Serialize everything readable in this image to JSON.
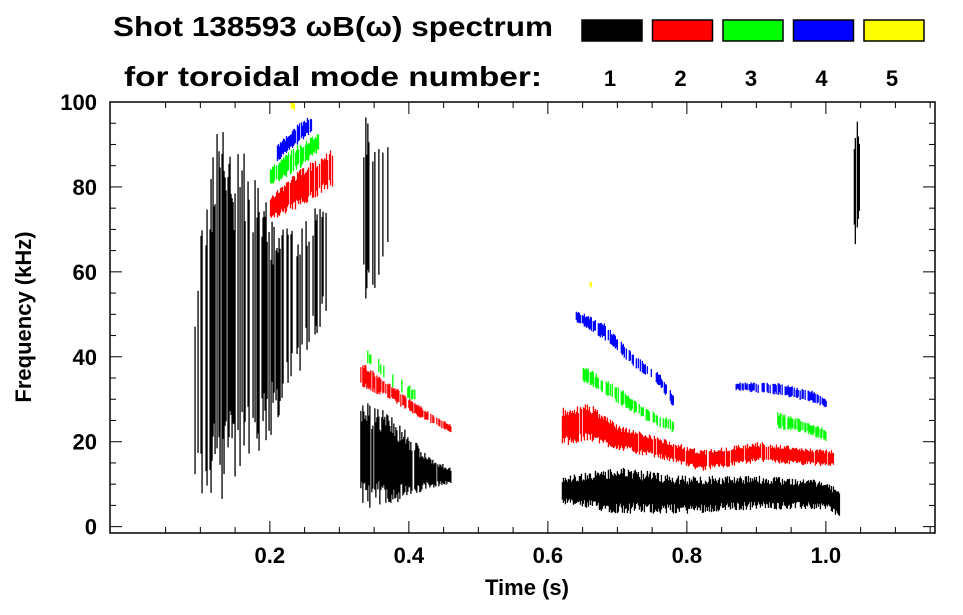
{
  "chart_data": {
    "type": "heatmap",
    "title": "Shot 138593 ωB(ω) spectrum",
    "subtitle": "for toroidal mode number:",
    "xlabel": "Time (s)",
    "ylabel": "Frequency (kHz)",
    "xlim": [
      -0.03,
      1.157
    ],
    "ylim": [
      -1.5,
      100
    ],
    "xticks": [
      0.2,
      0.4,
      0.6,
      0.8,
      1.0
    ],
    "xtick_labels": [
      "0.2",
      "0.4",
      "0.6",
      "0.8",
      "1.0"
    ],
    "yticks": [
      0,
      20,
      40,
      60,
      80,
      100
    ],
    "ytick_labels": [
      "0",
      "20",
      "40",
      "60",
      "80",
      "100"
    ],
    "grid": false,
    "legend": {
      "placement": "top-right",
      "entries": [
        {
          "label": "1",
          "color": "#000000"
        },
        {
          "label": "2",
          "color": "#ff0000"
        },
        {
          "label": "3",
          "color": "#00ff00"
        },
        {
          "label": "4",
          "color": "#0000ff"
        },
        {
          "label": "5",
          "color": "#ffff00"
        }
      ]
    },
    "series": [
      {
        "name": "n=1",
        "color": "#000000",
        "features": [
          {
            "points": [
              [
                0.09,
                3,
                60
              ],
              [
                0.12,
                5,
                95
              ],
              [
                0.15,
                8,
                90
              ],
              [
                0.18,
                15,
                85
              ],
              [
                0.2,
                20,
                75
              ],
              [
                0.24,
                35,
                72
              ],
              [
                0.28,
                50,
                78
              ]
            ],
            "density": 0.6
          },
          {
            "points": [
              [
                0.33,
                4,
                30
              ],
              [
                0.36,
                5,
                28
              ],
              [
                0.4,
                6,
                22
              ],
              [
                0.43,
                9,
                16
              ],
              [
                0.46,
                10,
                14
              ]
            ],
            "density": 0.95
          },
          {
            "points": [
              [
                0.33,
                50,
                100
              ],
              [
                0.35,
                55,
                95
              ],
              [
                0.37,
                60,
                90
              ]
            ],
            "density": 0.4
          },
          {
            "points": [
              [
                0.62,
                5,
                12
              ],
              [
                0.7,
                3,
                14
              ],
              [
                0.8,
                3,
                12
              ],
              [
                0.9,
                4,
                12
              ],
              [
                1.0,
                4,
                11
              ],
              [
                1.02,
                2,
                8
              ]
            ],
            "density": 1.0
          },
          {
            "points": [
              [
                1.04,
                65,
                95
              ],
              [
                1.05,
                70,
                97
              ]
            ],
            "density": 0.8
          }
        ]
      },
      {
        "name": "n=2",
        "color": "#ff0000",
        "features": [
          {
            "points": [
              [
                0.2,
                72,
                78
              ],
              [
                0.24,
                75,
                84
              ],
              [
                0.29,
                80,
                89
              ]
            ],
            "density": 0.9
          },
          {
            "points": [
              [
                0.33,
                33,
                39
              ],
              [
                0.37,
                30,
                34
              ],
              [
                0.41,
                26,
                29
              ],
              [
                0.46,
                22,
                24
              ]
            ],
            "density": 0.8
          },
          {
            "points": [
              [
                0.62,
                19,
                28
              ],
              [
                0.66,
                20,
                29
              ],
              [
                0.7,
                18,
                24
              ],
              [
                0.76,
                16,
                21
              ],
              [
                0.82,
                13,
                18
              ],
              [
                0.9,
                15,
                20
              ],
              [
                1.01,
                14,
                18
              ]
            ],
            "density": 0.95
          }
        ]
      },
      {
        "name": "n=3",
        "color": "#00ff00",
        "features": [
          {
            "points": [
              [
                0.2,
                80,
                85
              ],
              [
                0.24,
                84,
                90
              ],
              [
                0.27,
                88,
                93
              ]
            ],
            "density": 0.9
          },
          {
            "points": [
              [
                0.34,
                38,
                42
              ],
              [
                0.38,
                32,
                36
              ],
              [
                0.41,
                29,
                32
              ]
            ],
            "density": 0.3
          },
          {
            "points": [
              [
                0.65,
                34,
                38
              ],
              [
                0.7,
                29,
                33
              ],
              [
                0.74,
                25,
                28
              ],
              [
                0.78,
                22,
                25
              ]
            ],
            "density": 0.6
          },
          {
            "points": [
              [
                0.93,
                23,
                27
              ],
              [
                0.97,
                22,
                25
              ],
              [
                1.0,
                20,
                23
              ]
            ],
            "density": 0.8
          }
        ]
      },
      {
        "name": "n=4",
        "color": "#0000ff",
        "features": [
          {
            "points": [
              [
                0.21,
                86,
                90
              ],
              [
                0.24,
                90,
                95
              ],
              [
                0.26,
                93,
                97
              ]
            ],
            "density": 0.9
          },
          {
            "points": [
              [
                0.64,
                48,
                51
              ],
              [
                0.68,
                44,
                48
              ],
              [
                0.72,
                38,
                41
              ],
              [
                0.76,
                33,
                36
              ],
              [
                0.78,
                28,
                31
              ]
            ],
            "density": 0.7
          },
          {
            "points": [
              [
                0.87,
                32,
                34
              ],
              [
                0.93,
                31,
                34
              ],
              [
                0.98,
                29,
                32
              ],
              [
                1.0,
                28,
                30
              ]
            ],
            "density": 0.7
          }
        ]
      },
      {
        "name": "n=5",
        "color": "#ffff00",
        "features": [
          {
            "points": [
              [
                0.23,
                98,
                100
              ],
              [
                0.235,
                98,
                100
              ]
            ],
            "density": 1.0
          },
          {
            "points": [
              [
                0.66,
                56,
                58
              ],
              [
                0.662,
                56,
                58
              ]
            ],
            "density": 1.0
          }
        ]
      }
    ]
  }
}
